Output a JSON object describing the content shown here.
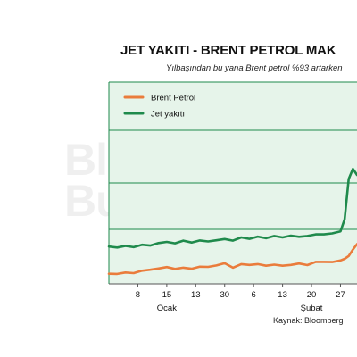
{
  "header": {
    "title": "JET YAKITI - BRENT PETROL MAK",
    "subtitle": "Yılbaşından bu yana Brent petrol %93 artarken"
  },
  "watermark": {
    "line1": "Bloomberg",
    "line2": "Businessweek"
  },
  "source": "Kaynak: Bloomberg",
  "colors": {
    "background": "#e6f4ea",
    "brent": "#ea7c3c",
    "jet": "#1f8a4c",
    "grid": "#1f8a4c"
  },
  "chart_data": {
    "type": "line",
    "title": "JET YAKITI - BRENT PETROL MAK",
    "xlabel": "",
    "ylabel": "",
    "legend": "top-left",
    "grid": true,
    "x_ticks": [
      {
        "value": 8,
        "label": "8"
      },
      {
        "value": 15,
        "label": "15"
      },
      {
        "value": 22,
        "label": "13"
      },
      {
        "value": 29,
        "label": "30"
      },
      {
        "value": 36,
        "label": "6"
      },
      {
        "value": 43,
        "label": "13"
      },
      {
        "value": 50,
        "label": "20"
      },
      {
        "value": 57,
        "label": "27"
      }
    ],
    "x_groups": [
      {
        "label": "Ocak",
        "at": 15
      },
      {
        "label": "Şubat",
        "at": 50
      }
    ],
    "xlim": [
      1,
      61
    ],
    "ylim": [
      0,
      100
    ],
    "y_gridlines": [
      27,
      50,
      82
    ],
    "x": [
      1,
      3,
      5,
      7,
      9,
      11,
      13,
      15,
      17,
      19,
      21,
      23,
      25,
      27,
      29,
      31,
      33,
      35,
      37,
      39,
      41,
      43,
      45,
      47,
      49,
      51,
      53,
      55,
      57,
      58,
      59,
      60,
      61
    ],
    "series": [
      {
        "name": "Brent Petrol",
        "color": "#ea7c3c",
        "values": [
          5.0,
          4.9,
          5.6,
          5.3,
          6.5,
          7.0,
          7.6,
          8.3,
          7.4,
          8.0,
          7.5,
          8.5,
          8.4,
          9.1,
          10.2,
          8.0,
          9.8,
          9.4,
          9.8,
          9.0,
          9.5,
          9.0,
          9.4,
          10.1,
          9.3,
          10.9,
          10.9,
          10.8,
          11.6,
          12.4,
          13.8,
          17.0,
          19.7
        ]
      },
      {
        "name": "Jet yakıtı",
        "color": "#1f8a4c",
        "values": [
          18.5,
          18.0,
          18.8,
          18.2,
          19.4,
          19.0,
          20.2,
          20.8,
          20.1,
          21.4,
          20.5,
          21.5,
          21.0,
          21.6,
          22.2,
          21.4,
          23.0,
          22.3,
          23.4,
          22.6,
          23.7,
          23.0,
          23.9,
          23.3,
          23.7,
          24.5,
          24.5,
          25.0,
          26.0,
          32.0,
          52.0,
          57.0,
          54.0
        ]
      }
    ]
  }
}
